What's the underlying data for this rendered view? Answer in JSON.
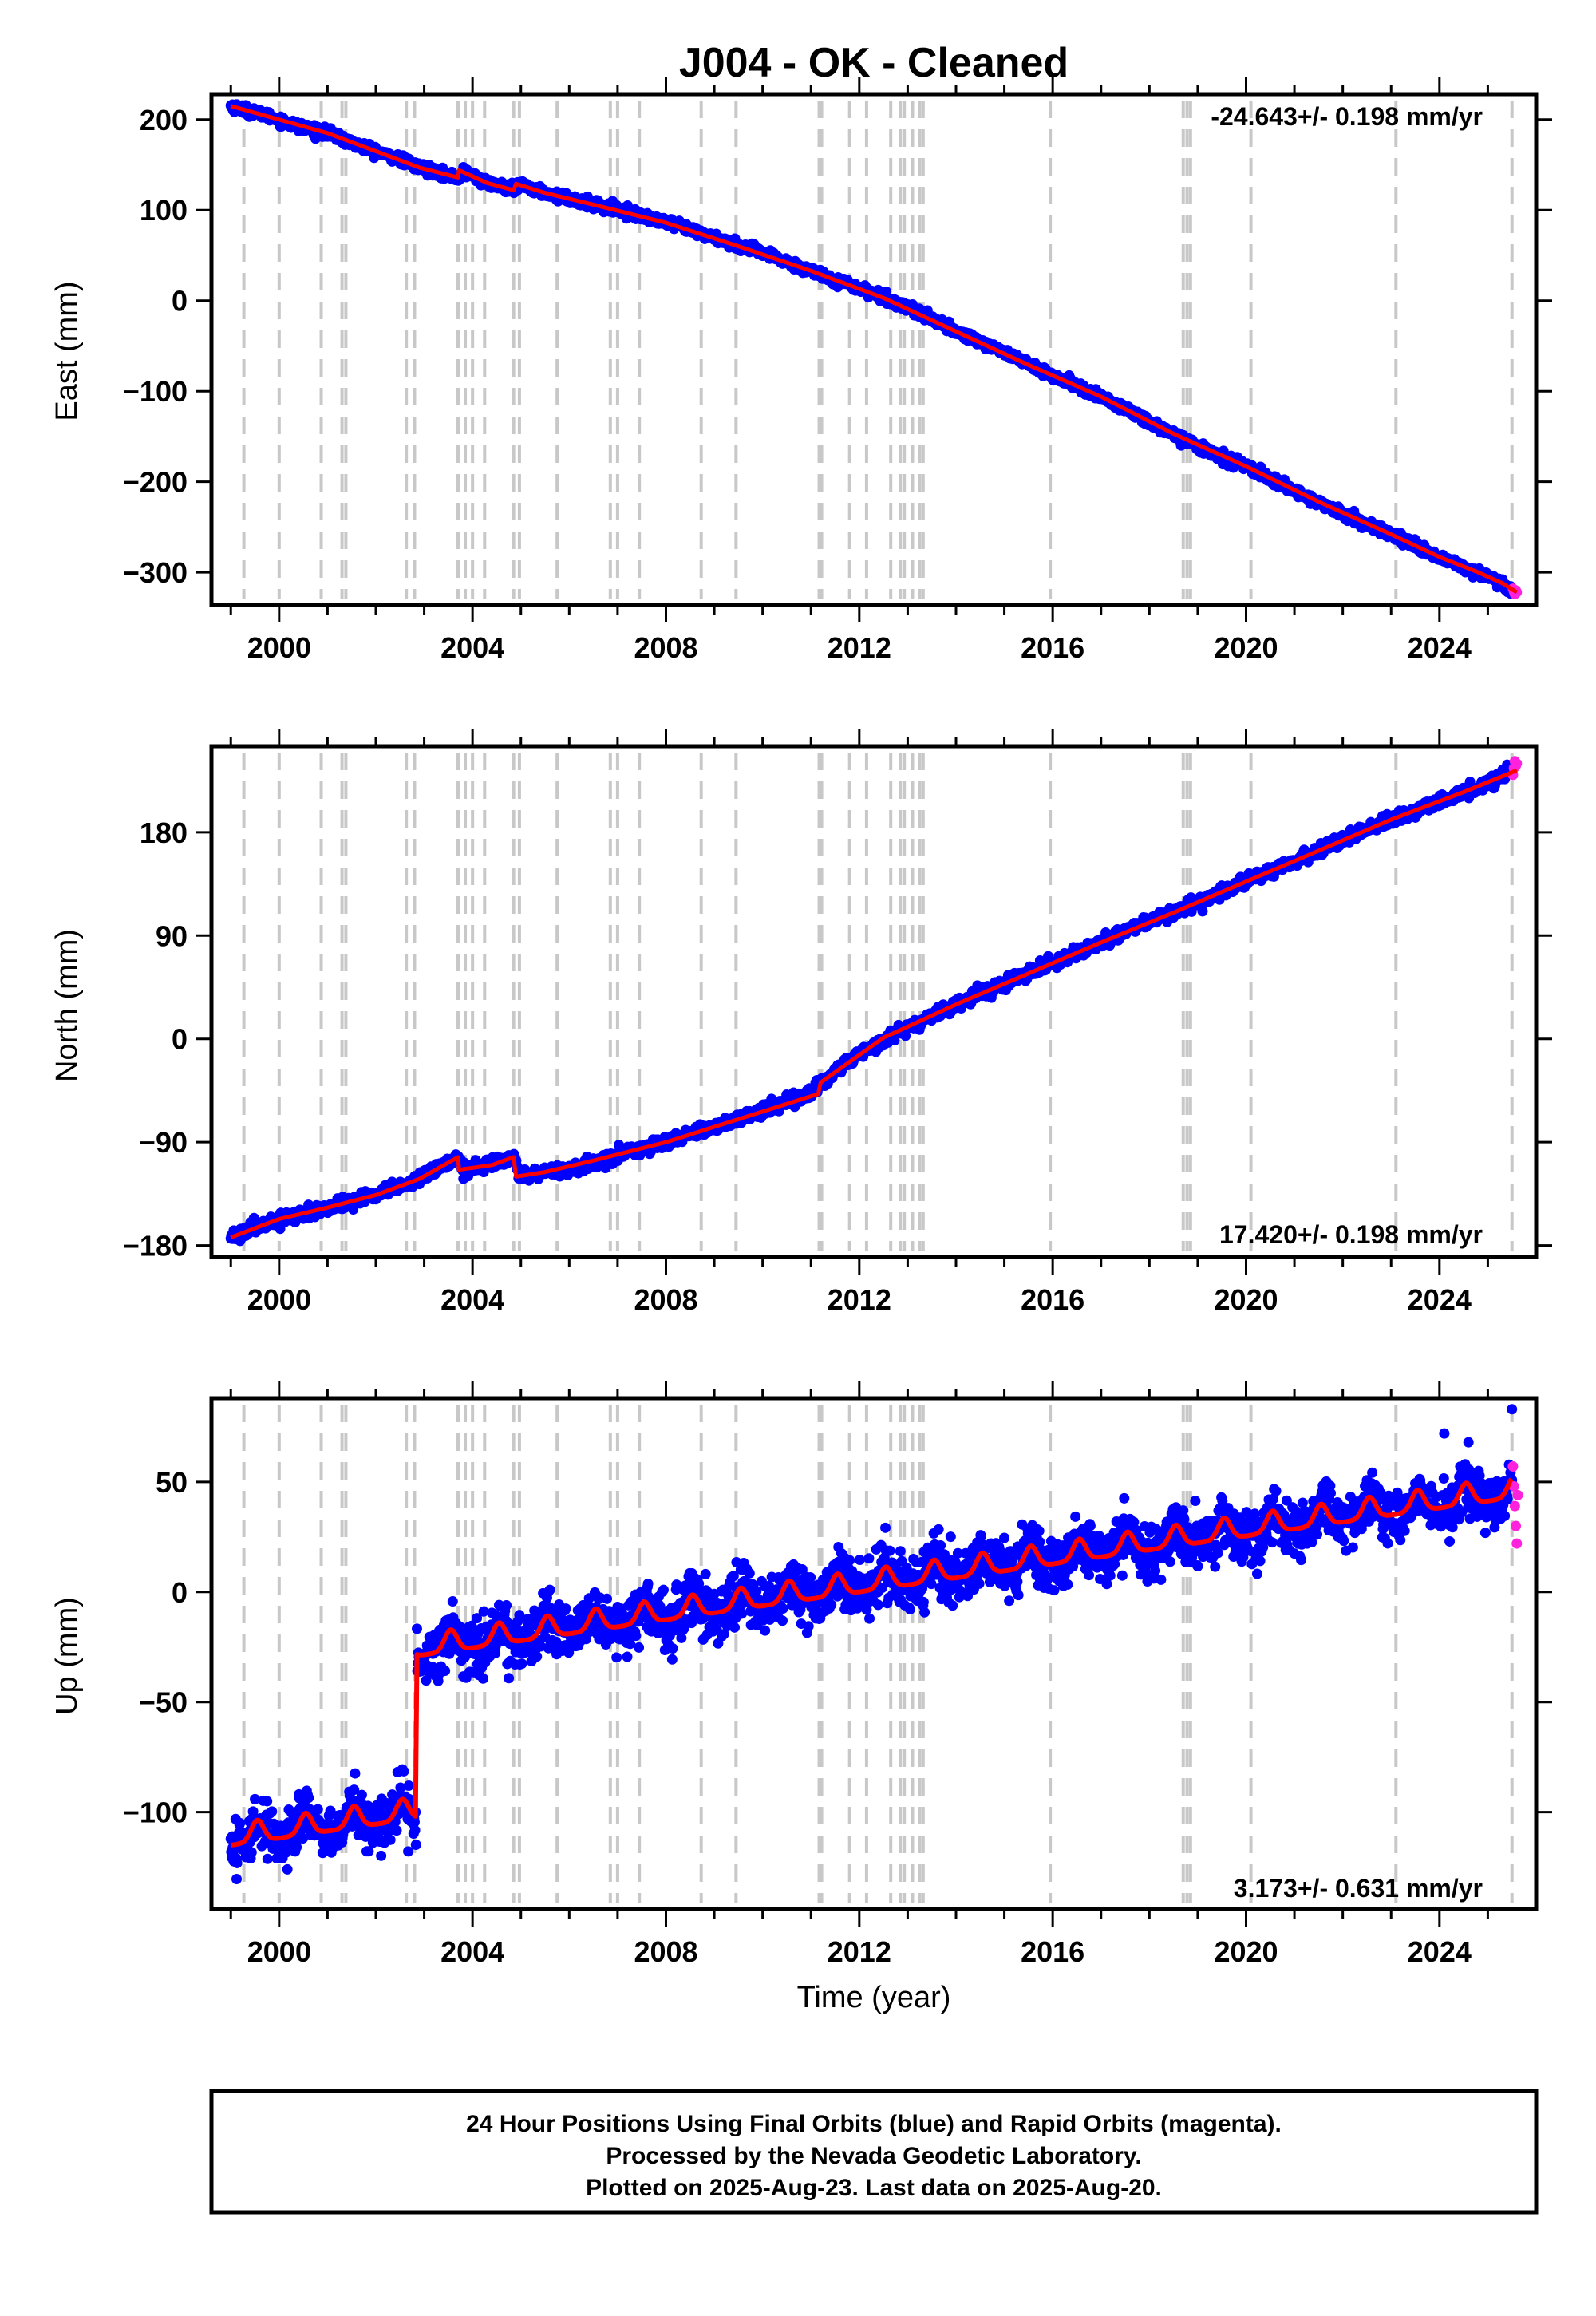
{
  "title": "J004  - OK - Cleaned",
  "colors": {
    "final_orbits": "#0000ff",
    "rapid_orbits": "#ff22dd",
    "model_fit": "#ff0000",
    "event_lines": "#c8c8c8",
    "frame": "#000000"
  },
  "event_lines_years": [
    1999.27,
    2000.0,
    2000.87,
    2001.3,
    2001.38,
    2002.63,
    2002.8,
    2003.7,
    2003.85,
    2004.0,
    2004.25,
    2004.85,
    2004.97,
    2005.75,
    2006.85,
    2007.0,
    2007.45,
    2008.73,
    2009.45,
    2011.17,
    2011.22,
    2011.8,
    2012.15,
    2012.65,
    2012.85,
    2012.93,
    2013.1,
    2013.25,
    2013.32,
    2015.95,
    2018.7,
    2018.78,
    2018.85,
    2020.1,
    2023.1,
    2025.5
  ],
  "chart_data": [
    {
      "type": "scatter",
      "panel": "east",
      "title": "J004  - OK - Cleaned",
      "ylabel": "East (mm)",
      "xlabel": "",
      "xlim": [
        1998.6,
        2026.0
      ],
      "ylim": [
        -336,
        228
      ],
      "xticks": [
        2000,
        2004,
        2008,
        2012,
        2016,
        2020,
        2024
      ],
      "yticks": [
        200,
        100,
        0,
        -100,
        -200,
        -300
      ],
      "ytick_labels": [
        "200",
        "100",
        "0",
        "−100",
        "−200",
        "−300"
      ],
      "rate_label": "-24.643+/- 0.198 mm/yr",
      "rate_position": "top-right",
      "grid": false,
      "series": [
        {
          "role": "final_orbits",
          "x": [
            1999.0,
            1999.5,
            2000.0,
            2000.5,
            2001.0,
            2001.5,
            2002.0,
            2002.5,
            2002.9,
            2003.3,
            2003.72,
            2003.8,
            2004.3,
            2004.85,
            2004.97,
            2005.5,
            2006.0,
            2007.0,
            2008.0,
            2009.0,
            2010.0,
            2011.0,
            2012.0,
            2013.0,
            2014.0,
            2015.0,
            2016.0,
            2017.0,
            2018.0,
            2019.0,
            2020.0,
            2021.0,
            2022.0,
            2023.0,
            2024.0,
            2024.6,
            2025.0,
            2025.3,
            2025.5
          ],
          "y": [
            215,
            208,
            200,
            191,
            185,
            174,
            165,
            156,
            147,
            142,
            135,
            143,
            130,
            122,
            128,
            119,
            112,
            101,
            86,
            70,
            52,
            33,
            14,
            -7,
            -34,
            -57,
            -83,
            -106,
            -134,
            -161,
            -183,
            -210,
            -236,
            -258,
            -283,
            -297,
            -303,
            -314,
            -322
          ]
        },
        {
          "role": "rapid_orbits",
          "x": [
            2025.52,
            2025.54,
            2025.56,
            2025.58,
            2025.6
          ],
          "y": [
            -318,
            -321,
            -324,
            -320,
            -322
          ]
        }
      ],
      "fit": {
        "x": [
          1999.0,
          2000.0,
          2001.0,
          2002.0,
          2002.9,
          2003.7,
          2003.72,
          2004.3,
          2004.85,
          2004.9,
          2005.5,
          2006.5,
          2008.0,
          2009.5,
          2011.0,
          2012.5,
          2014.0,
          2015.5,
          2017.0,
          2018.5,
          2020.0,
          2021.5,
          2023.0,
          2024.0,
          2024.8,
          2025.3,
          2025.6
        ],
        "y": [
          215,
          200,
          185,
          165,
          147,
          136,
          144,
          130,
          122,
          129,
          119,
          106,
          86,
          60,
          33,
          3,
          -34,
          -71,
          -106,
          -147,
          -183,
          -222,
          -258,
          -283,
          -300,
          -312,
          -322
        ]
      }
    },
    {
      "type": "scatter",
      "panel": "north",
      "title": "",
      "ylabel": "North (mm)",
      "xlabel": "",
      "xlim": [
        1998.6,
        2026.0
      ],
      "ylim": [
        -190,
        255
      ],
      "xticks": [
        2000,
        2004,
        2008,
        2012,
        2016,
        2020,
        2024
      ],
      "yticks": [
        180,
        90,
        0,
        -90,
        -180
      ],
      "ytick_labels": [
        "180",
        "90",
        "0",
        "−90",
        "−180"
      ],
      "rate_label": "17.420+/- 0.198 mm/yr",
      "rate_position": "bottom-right",
      "grid": false,
      "series": [
        {
          "role": "final_orbits",
          "x": [
            1999.0,
            1999.5,
            2000.0,
            2001.0,
            2002.0,
            2002.9,
            2003.3,
            2003.72,
            2003.8,
            2004.3,
            2004.85,
            2004.97,
            2005.5,
            2006.0,
            2007.0,
            2008.0,
            2009.0,
            2010.0,
            2011.0,
            2011.2,
            2012.0,
            2013.0,
            2014.0,
            2015.0,
            2016.0,
            2017.0,
            2018.0,
            2019.0,
            2020.0,
            2021.0,
            2022.0,
            2023.0,
            2024.0,
            2025.0,
            2025.5
          ],
          "y": [
            -173,
            -165,
            -157,
            -147,
            -136,
            -122,
            -112,
            -103,
            -114,
            -110,
            -103,
            -120,
            -116,
            -114,
            -101,
            -90,
            -76,
            -62,
            -48,
            -38,
            -13,
            10,
            30,
            48,
            66,
            84,
            103,
            118,
            137,
            155,
            173,
            191,
            207,
            222,
            234
          ]
        },
        {
          "role": "rapid_orbits",
          "x": [
            2025.52,
            2025.54,
            2025.56,
            2025.58,
            2025.6
          ],
          "y": [
            230,
            236,
            242,
            238,
            240
          ]
        }
      ],
      "fit": {
        "x": [
          1999.0,
          2000.0,
          2001.0,
          2002.0,
          2002.9,
          2003.7,
          2003.72,
          2004.4,
          2004.85,
          2004.9,
          2005.5,
          2006.5,
          2008.0,
          2009.5,
          2011.15,
          2011.2,
          2012.5,
          2014.0,
          2015.5,
          2017.0,
          2018.5,
          2020.0,
          2021.5,
          2023.0,
          2024.5,
          2025.6
        ],
        "y": [
          -173,
          -157,
          -147,
          -136,
          -122,
          -103,
          -114,
          -110,
          -103,
          -120,
          -116,
          -106,
          -90,
          -70,
          -48,
          -38,
          1,
          30,
          57,
          84,
          110,
          137,
          164,
          191,
          215,
          234
        ]
      }
    },
    {
      "type": "scatter",
      "panel": "up",
      "title": "",
      "ylabel": "Up (mm)",
      "xlabel": "Time (year)",
      "xlim": [
        1998.6,
        2026.0
      ],
      "ylim": [
        -144,
        88
      ],
      "xticks": [
        2000,
        2004,
        2008,
        2012,
        2016,
        2020,
        2024
      ],
      "yticks": [
        50,
        0,
        -50,
        -100
      ],
      "ytick_labels": [
        "50",
        "0",
        "−50",
        "−100"
      ],
      "rate_label": "3.173+/- 0.631 mm/yr",
      "rate_position": "bottom-right",
      "grid": false,
      "pre_step": {
        "start": 1999.0,
        "end": 2002.83,
        "base": -112,
        "trend": 3.173
      },
      "post_step": {
        "start": 2002.85,
        "end": 2025.5,
        "base": -26,
        "trend": 3.173
      },
      "seasonal_amplitude_mm": 6,
      "scatter_spread_mm": 6,
      "series": [
        {
          "role": "final_orbits",
          "x": [
            2024.1,
            2024.6,
            2025.5
          ],
          "y": [
            72,
            68,
            83
          ]
        },
        {
          "role": "rapid_orbits",
          "x": [
            2025.52,
            2025.54,
            2025.56,
            2025.58,
            2025.6,
            2025.62
          ],
          "y": [
            57,
            48,
            39,
            30,
            22,
            44
          ]
        }
      ]
    }
  ],
  "footer": {
    "line1": "24 Hour Positions Using Final Orbits (blue) and Rapid Orbits (magenta).",
    "line2": "Processed by the Nevada Geodetic Laboratory.",
    "line3": "Plotted on 2025-Aug-23. Last data on 2025-Aug-20."
  }
}
